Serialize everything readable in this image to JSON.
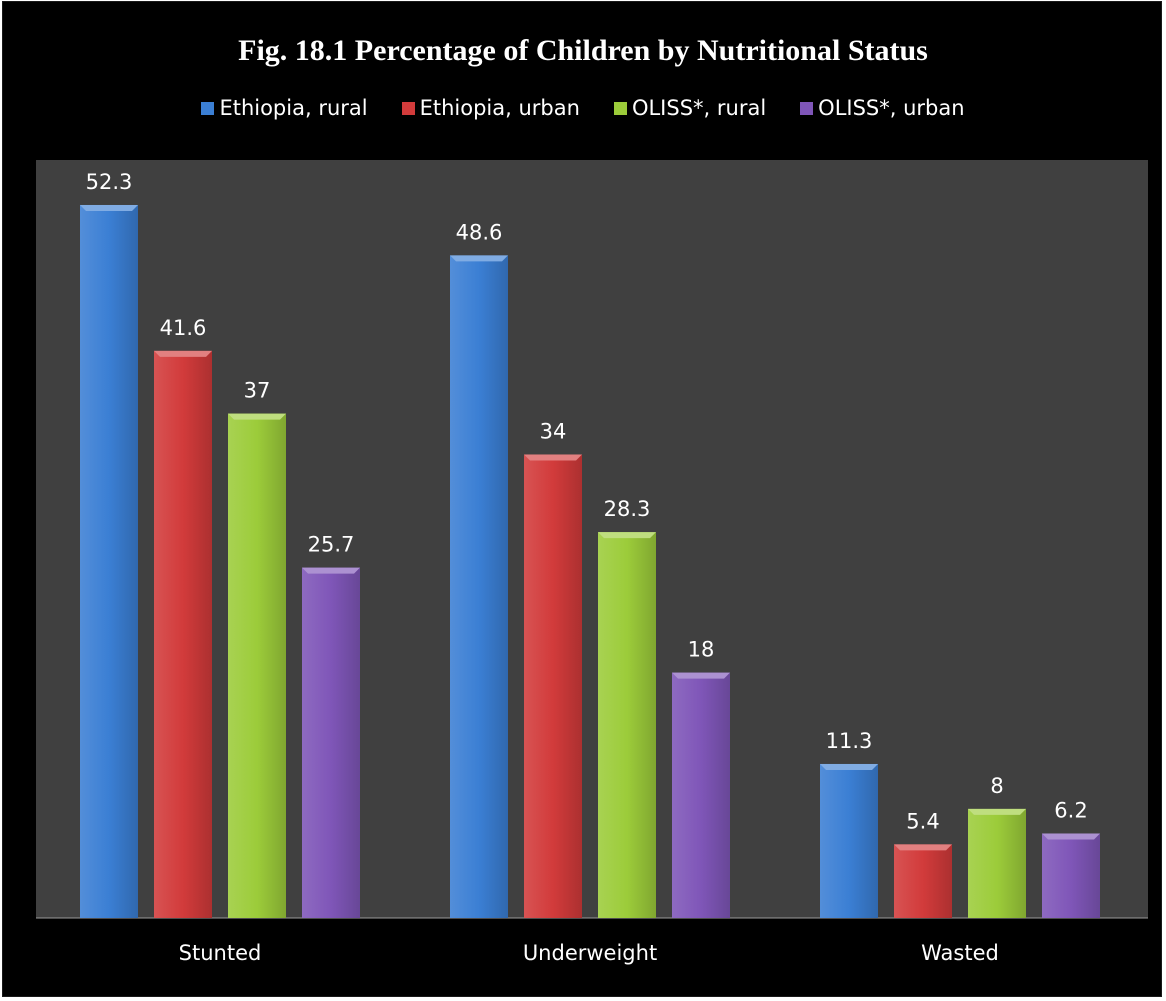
{
  "chart_data": {
    "type": "bar",
    "title": "Fig. 18.1 Percentage of Children by Nutritional Status",
    "categories": [
      "Stunted",
      "Underweight",
      "Wasted"
    ],
    "series": [
      {
        "name": "Ethiopia, rural",
        "color": "#3b7fd4",
        "values": [
          52.3,
          48.6,
          11.3
        ]
      },
      {
        "name": "Ethiopia, urban",
        "color": "#d23b3b",
        "values": [
          41.6,
          34,
          5.4
        ]
      },
      {
        "name": "OLISS*, rural",
        "color": "#9ccc3a",
        "values": [
          37,
          28.3,
          8
        ]
      },
      {
        "name": "OLISS*, urban",
        "color": "#7f56b8",
        "values": [
          25.7,
          18,
          6.2
        ]
      }
    ],
    "legend_position": "top",
    "plot_background": "#404040",
    "page_background": "#000000",
    "grid": false,
    "ylim": [
      0,
      60
    ]
  }
}
